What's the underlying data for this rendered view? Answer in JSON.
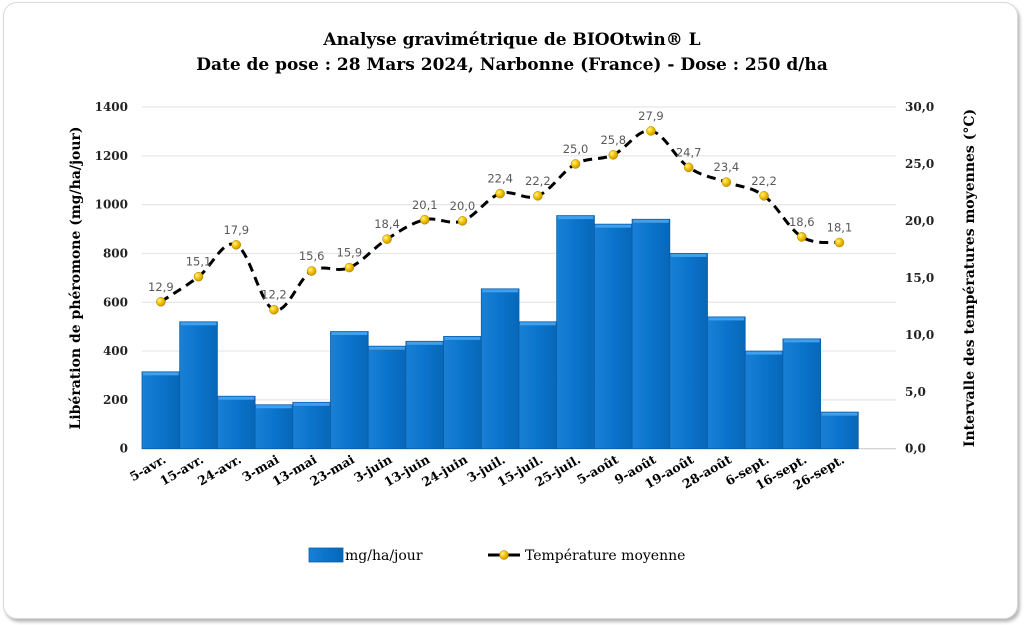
{
  "chart_data": {
    "type": "bar",
    "title": "Analyse gravimétrique de BIOOtwin® L",
    "subtitle": "Date de pose : 28 Mars 2024, Narbonne (France) - Dose : 250 d/ha",
    "categories": [
      "5-avr.",
      "15-avr.",
      "24-avr.",
      "3-mai",
      "13-mai",
      "23-mai",
      "3-juin",
      "13-juin",
      "24-juin",
      "3-juil.",
      "15-juil.",
      "25-juil.",
      "5-août",
      "9-août",
      "19-août",
      "28-août",
      "6-sept.",
      "16-sept.",
      "26-sept."
    ],
    "ylabel": "Libération de phéromone (mg/ha/jour)",
    "ylabel_right": "Intervalle des températures moyennes (°C)",
    "ylim": [
      0,
      1400
    ],
    "yticks": [
      "0",
      "200",
      "400",
      "600",
      "800",
      "1000",
      "1200",
      "1400"
    ],
    "ylim_right": [
      0,
      30
    ],
    "yticks_right": [
      "0,0",
      "5,0",
      "10,0",
      "15,0",
      "20,0",
      "25,0",
      "30,0"
    ],
    "grid": true,
    "legend_position": "bottom",
    "series": [
      {
        "name": "mg/ha/jour",
        "type": "bar",
        "axis": "left",
        "color": "#0A74CC",
        "values": [
          315,
          520,
          215,
          180,
          190,
          480,
          420,
          440,
          460,
          655,
          520,
          955,
          920,
          940,
          800,
          540,
          400,
          450,
          150
        ]
      },
      {
        "name": "Température moyenne",
        "type": "line",
        "axis": "right",
        "line_color": "#000000",
        "line_style": "dashed",
        "marker_color": "#F5C400",
        "values": [
          12.9,
          15.1,
          17.9,
          12.2,
          15.6,
          15.9,
          18.4,
          20.1,
          20.0,
          22.4,
          22.2,
          25.0,
          25.8,
          27.9,
          24.7,
          23.4,
          22.2,
          18.6,
          18.1
        ],
        "labels": [
          "12,9",
          "15,1",
          "17,9",
          "12,2",
          "15,6",
          "15,9",
          "18,4",
          "20,1",
          "20,0",
          "22,4",
          "22,2",
          "25,0",
          "25,8",
          "27,9",
          "24,7",
          "23,4",
          "22,2",
          "18,6",
          "18,1"
        ]
      }
    ]
  }
}
